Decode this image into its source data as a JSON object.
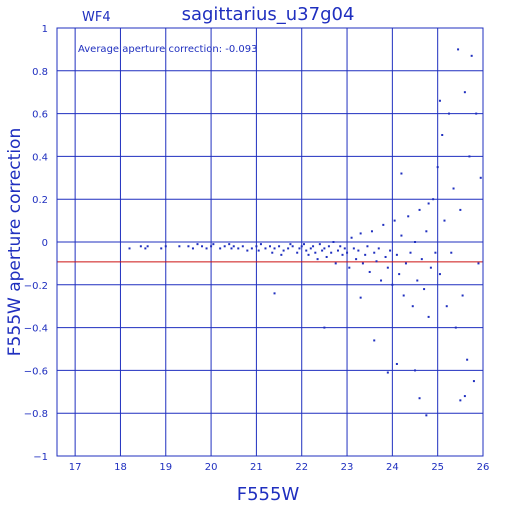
{
  "chart_data": {
    "type": "scatter",
    "title": "sagittarius_u37g04",
    "chip_label": "WF4",
    "annotation": "Average aperture correction: -0.093",
    "xlabel": "F555W",
    "ylabel": "F555W aperture correction",
    "xlim": [
      16.6,
      26
    ],
    "ylim": [
      -1,
      1
    ],
    "x_ticks": [
      17,
      18,
      19,
      20,
      21,
      22,
      23,
      24,
      25,
      26
    ],
    "x_tick_labels": [
      "17",
      "18",
      "19",
      "20",
      "21",
      "22",
      "23",
      "24",
      "25",
      "26"
    ],
    "y_ticks": [
      -1,
      -0.8,
      -0.6,
      -0.4,
      -0.2,
      0,
      0.2,
      0.4,
      0.6,
      0.8,
      1
    ],
    "y_tick_labels": [
      "−1",
      "−0.8",
      "−0.6",
      "−0.4",
      "−0.2",
      "0",
      "0.2",
      "0.4",
      "0.6",
      "0.8",
      "1"
    ],
    "grid": true,
    "average_line": -0.093,
    "colors": {
      "axes": "#1f2fbf",
      "points": "#1f2fbf",
      "average_line": "#cc1111",
      "background": "#ffffff"
    },
    "series": [
      {
        "points": [
          [
            18.2,
            -0.03
          ],
          [
            18.45,
            -0.02
          ],
          [
            18.55,
            -0.03
          ],
          [
            18.6,
            -0.02
          ],
          [
            18.9,
            -0.03
          ],
          [
            19.0,
            -0.02
          ],
          [
            19.3,
            -0.02
          ],
          [
            19.5,
            -0.02
          ],
          [
            19.6,
            -0.03
          ],
          [
            19.7,
            -0.01
          ],
          [
            19.8,
            -0.02
          ],
          [
            19.9,
            -0.03
          ],
          [
            20.0,
            -0.02
          ],
          [
            20.05,
            -0.01
          ],
          [
            20.2,
            -0.03
          ],
          [
            20.3,
            -0.02
          ],
          [
            20.4,
            -0.01
          ],
          [
            20.45,
            -0.03
          ],
          [
            20.5,
            -0.02
          ],
          [
            20.6,
            -0.03
          ],
          [
            20.7,
            -0.02
          ],
          [
            20.8,
            -0.04
          ],
          [
            20.9,
            -0.03
          ],
          [
            21.0,
            -0.02
          ],
          [
            21.05,
            -0.04
          ],
          [
            21.1,
            -0.01
          ],
          [
            21.2,
            -0.03
          ],
          [
            21.3,
            -0.02
          ],
          [
            21.35,
            -0.05
          ],
          [
            21.4,
            -0.03
          ],
          [
            21.5,
            -0.02
          ],
          [
            21.55,
            -0.06
          ],
          [
            21.6,
            -0.04
          ],
          [
            21.7,
            -0.03
          ],
          [
            21.75,
            -0.01
          ],
          [
            21.8,
            -0.02
          ],
          [
            21.9,
            -0.05
          ],
          [
            21.95,
            -0.03
          ],
          [
            22.0,
            -0.02
          ],
          [
            22.05,
            -0.01
          ],
          [
            22.1,
            -0.04
          ],
          [
            22.15,
            -0.06
          ],
          [
            22.2,
            -0.03
          ],
          [
            22.25,
            -0.02
          ],
          [
            22.3,
            -0.05
          ],
          [
            22.35,
            -0.08
          ],
          [
            22.4,
            -0.01
          ],
          [
            22.45,
            -0.04
          ],
          [
            22.5,
            -0.03
          ],
          [
            22.55,
            -0.07
          ],
          [
            22.6,
            -0.02
          ],
          [
            22.65,
            -0.05
          ],
          [
            22.7,
            0.0
          ],
          [
            22.75,
            -0.1
          ],
          [
            22.8,
            -0.04
          ],
          [
            22.85,
            -0.02
          ],
          [
            22.9,
            -0.06
          ],
          [
            22.95,
            -0.03
          ],
          [
            23.0,
            -0.05
          ],
          [
            23.05,
            -0.12
          ],
          [
            23.1,
            0.02
          ],
          [
            23.15,
            -0.03
          ],
          [
            23.2,
            -0.08
          ],
          [
            23.25,
            -0.04
          ],
          [
            23.3,
            0.04
          ],
          [
            23.35,
            -0.1
          ],
          [
            23.4,
            -0.06
          ],
          [
            23.45,
            -0.02
          ],
          [
            23.5,
            -0.14
          ],
          [
            23.55,
            0.05
          ],
          [
            23.6,
            -0.05
          ],
          [
            23.65,
            -0.09
          ],
          [
            23.7,
            -0.03
          ],
          [
            23.75,
            -0.18
          ],
          [
            23.8,
            0.08
          ],
          [
            23.85,
            -0.07
          ],
          [
            23.9,
            -0.12
          ],
          [
            23.95,
            -0.04
          ],
          [
            24.0,
            -0.2
          ],
          [
            24.05,
            0.1
          ],
          [
            24.1,
            -0.06
          ],
          [
            24.15,
            -0.15
          ],
          [
            24.2,
            0.03
          ],
          [
            24.25,
            -0.25
          ],
          [
            24.3,
            -0.1
          ],
          [
            24.35,
            0.12
          ],
          [
            24.4,
            -0.05
          ],
          [
            24.45,
            -0.3
          ],
          [
            24.5,
            0.0
          ],
          [
            24.55,
            -0.18
          ],
          [
            24.6,
            0.15
          ],
          [
            24.65,
            -0.08
          ],
          [
            24.7,
            -0.22
          ],
          [
            24.75,
            0.05
          ],
          [
            24.8,
            -0.35
          ],
          [
            24.85,
            -0.12
          ],
          [
            24.9,
            0.2
          ],
          [
            24.95,
            -0.05
          ],
          [
            25.0,
            0.35
          ],
          [
            25.05,
            -0.15
          ],
          [
            25.1,
            0.5
          ],
          [
            25.15,
            0.1
          ],
          [
            25.2,
            -0.3
          ],
          [
            25.25,
            0.6
          ],
          [
            25.3,
            -0.05
          ],
          [
            25.35,
            0.25
          ],
          [
            25.4,
            -0.4
          ],
          [
            25.45,
            0.9
          ],
          [
            25.5,
            0.15
          ],
          [
            25.55,
            -0.25
          ],
          [
            25.6,
            0.7
          ],
          [
            25.65,
            -0.55
          ],
          [
            25.7,
            0.4
          ],
          [
            25.75,
            0.87
          ],
          [
            25.8,
            -0.65
          ],
          [
            25.85,
            0.6
          ],
          [
            25.9,
            -0.1
          ],
          [
            25.95,
            0.3
          ],
          [
            22.5,
            -0.4
          ],
          [
            23.3,
            -0.26
          ],
          [
            23.9,
            -0.61
          ],
          [
            24.1,
            -0.57
          ],
          [
            24.5,
            -0.6
          ],
          [
            24.6,
            -0.73
          ],
          [
            24.75,
            -0.81
          ],
          [
            25.5,
            -0.74
          ],
          [
            21.4,
            -0.24
          ],
          [
            23.6,
            -0.46
          ],
          [
            24.2,
            0.32
          ],
          [
            24.8,
            0.18
          ],
          [
            25.6,
            -0.72
          ],
          [
            25.05,
            0.66
          ]
        ]
      }
    ]
  }
}
